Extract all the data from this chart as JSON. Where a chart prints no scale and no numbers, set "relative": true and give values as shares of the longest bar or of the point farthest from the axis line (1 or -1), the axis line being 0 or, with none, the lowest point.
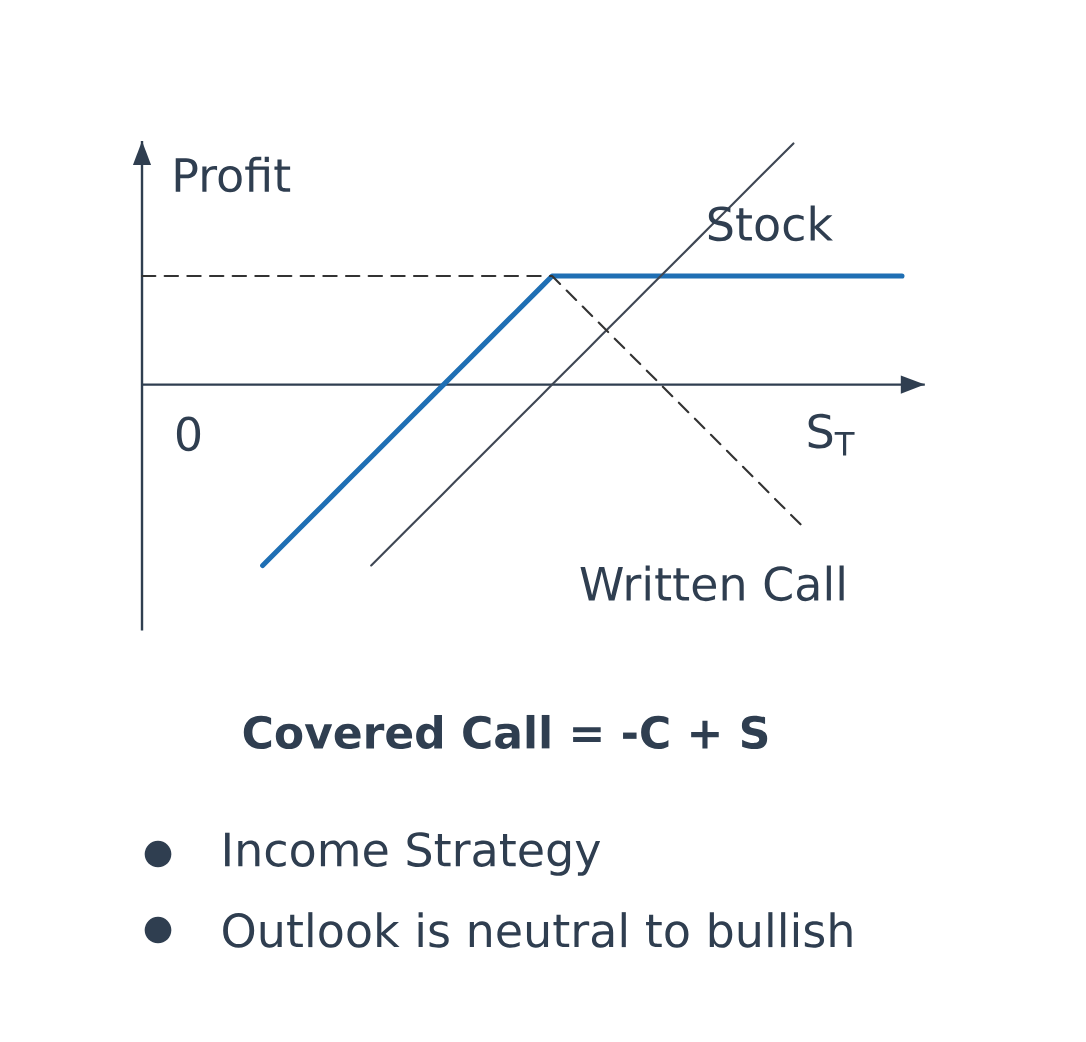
{
  "chart_data": {
    "type": "line",
    "title": "Covered Call = -C + S",
    "xlabel": "S$_{T}$",
    "ylabel": "Profit",
    "relative": true,
    "categories": [
      null,
      null,
      null,
      null,
      null,
      null,
      null,
      null,
      null,
      null,
      null,
      null,
      null,
      null,
      null,
      null,
      null,
      null,
      null,
      null,
      null,
      null,
      null,
      null,
      null,
      null,
      null,
      null,
      null,
      null,
      null,
      null,
      null,
      null,
      null,
      null,
      null,
      null,
      null,
      null,
      null,
      null,
      null,
      null,
      null,
      null,
      null,
      null,
      null,
      null,
      null,
      null,
      null,
      null,
      null,
      null,
      null,
      null,
      null,
      null,
      null,
      null,
      null,
      null
    ],
    "series": [
      {
        "color": "#1f6fb4",
        "values": [
          null,
          null,
          null,
          null,
          null,
          null,
          null,
          null,
          null,
          null,
          -0.75,
          -0.7,
          -0.65,
          -0.6,
          -0.55,
          -0.5,
          -0.45,
          -0.4,
          -0.35,
          -0.3,
          -0.25,
          -0.2,
          -0.15,
          -0.1,
          -0.05,
          0,
          0.05,
          0.1,
          0.15,
          0.2,
          0.25,
          0.3,
          0.35,
          0.4,
          0.45,
          0.45,
          0.45,
          0.45,
          0.45,
          0.45,
          0.45,
          0.45,
          0.45,
          0.45,
          0.45,
          0.45,
          0.45,
          0.45,
          0.45,
          0.45,
          0.45,
          0.45,
          0.45,
          0.45,
          0.45,
          0.45,
          0.45,
          0.45,
          0.45,
          0.45,
          0.45,
          0.45,
          0.45,
          0.45
        ]
      },
      {
        "name": "Stock",
        "color": "#3f4754",
        "values": [
          null,
          null,
          null,
          null,
          null,
          null,
          null,
          null,
          null,
          null,
          null,
          null,
          null,
          null,
          null,
          null,
          null,
          null,
          null,
          -0.75,
          -0.7,
          -0.65,
          -0.6,
          -0.55,
          -0.5,
          -0.45,
          -0.4,
          -0.35,
          -0.3,
          -0.25,
          -0.2,
          -0.15,
          -0.1,
          -0.05,
          0,
          0.05,
          0.1,
          0.15,
          0.2,
          0.25,
          0.3,
          0.35,
          0.4,
          0.45,
          0.5,
          0.55,
          0.6,
          0.65,
          0.7,
          0.75,
          0.8,
          0.85,
          0.9,
          0.95,
          1,
          null,
          null,
          null,
          null,
          null,
          null,
          null,
          null,
          null
        ]
      },
      {
        "name": "Written Call",
        "color": "#333333",
        "line_style": "dashed",
        "values": [
          0.45,
          0.45,
          0.45,
          0.45,
          0.45,
          0.45,
          0.45,
          0.45,
          0.45,
          0.45,
          0.45,
          0.45,
          0.45,
          0.45,
          0.45,
          0.45,
          0.45,
          0.45,
          0.45,
          0.45,
          0.45,
          0.45,
          0.45,
          0.45,
          0.45,
          0.45,
          0.45,
          0.45,
          0.45,
          0.45,
          0.45,
          0.45,
          0.45,
          0.45,
          0.45,
          0.4,
          0.35,
          0.3,
          0.25,
          0.2,
          0.15,
          0.1,
          0.05,
          0,
          -0.05,
          -0.1,
          -0.15,
          -0.2,
          -0.25,
          -0.3,
          -0.35,
          -0.4,
          -0.45,
          -0.5,
          -0.55,
          -0.6,
          null,
          null,
          null,
          null,
          null,
          null,
          null,
          null
        ]
      }
    ],
    "annotations": [
      "0",
      "Income Strategy",
      "Outlook is neutral to bullish"
    ]
  }
}
